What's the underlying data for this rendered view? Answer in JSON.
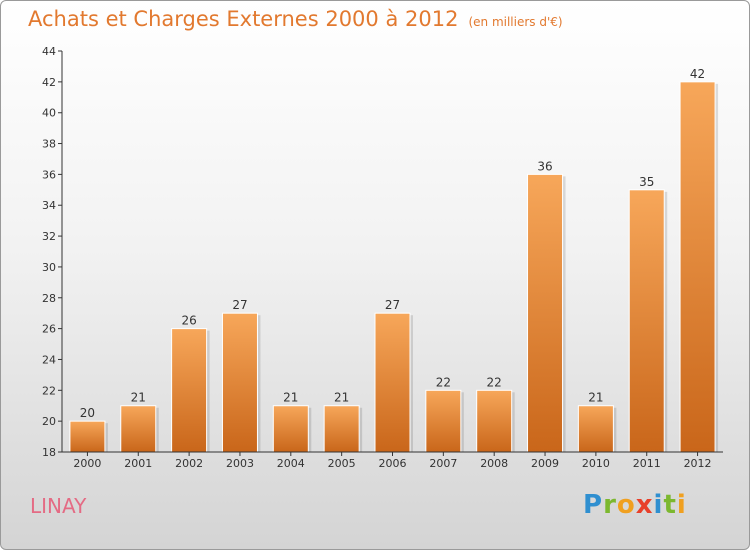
{
  "header": {
    "title": "Achats et Charges Externes 2000 à 2012",
    "unit": "(en milliers d'€)"
  },
  "footer": {
    "commune": "LINAY",
    "logo_letters": [
      "P",
      "r",
      "o",
      "x",
      "i",
      "t",
      "i"
    ],
    "logo_colors": [
      "#2f8fd0",
      "#7cb82f",
      "#f0a020",
      "#e8402a",
      "#2f8fd0",
      "#7cb82f",
      "#f0a020"
    ]
  },
  "colors": {
    "bar_top": "#f7a75a",
    "bar_bottom": "#c9661a",
    "title": "#e2792f",
    "axis": "#333333"
  },
  "chart_data": {
    "type": "bar",
    "categories": [
      "2000",
      "2001",
      "2002",
      "2003",
      "2004",
      "2005",
      "2006",
      "2007",
      "2008",
      "2009",
      "2010",
      "2011",
      "2012"
    ],
    "values": [
      20,
      21,
      26,
      27,
      21,
      21,
      27,
      22,
      22,
      36,
      21,
      35,
      42
    ],
    "yticks": [
      18,
      20,
      22,
      24,
      26,
      28,
      30,
      32,
      34,
      36,
      38,
      40,
      42,
      44
    ],
    "ylim": [
      18,
      44
    ],
    "grid": false
  }
}
